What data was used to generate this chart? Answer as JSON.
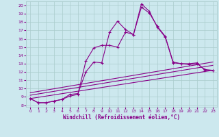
{
  "xlabel": "Windchill (Refroidissement éolien,°C)",
  "bg_color": "#cce8ee",
  "line_color": "#880088",
  "xlim": [
    -0.5,
    23.5
  ],
  "ylim": [
    7.8,
    20.5
  ],
  "xticks": [
    0,
    1,
    2,
    3,
    4,
    5,
    6,
    7,
    8,
    9,
    10,
    11,
    12,
    13,
    14,
    15,
    16,
    17,
    18,
    19,
    20,
    21,
    22,
    23
  ],
  "yticks": [
    8,
    9,
    10,
    11,
    12,
    13,
    14,
    15,
    16,
    17,
    18,
    19,
    20
  ],
  "curve1_x": [
    0,
    1,
    2,
    3,
    4,
    5,
    6,
    7,
    8,
    9,
    10,
    11,
    12,
    13,
    14,
    15,
    16,
    17,
    18,
    19,
    20,
    21,
    22,
    23
  ],
  "curve1_y": [
    8.8,
    8.3,
    8.3,
    8.5,
    8.7,
    9.3,
    9.4,
    12.0,
    13.2,
    13.1,
    16.8,
    18.1,
    17.1,
    16.5,
    20.2,
    19.3,
    17.4,
    16.2,
    13.1,
    13.0,
    13.0,
    13.1,
    12.2,
    12.2
  ],
  "curve2_x": [
    0,
    1,
    2,
    3,
    4,
    5,
    6,
    7,
    8,
    9,
    10,
    11,
    12,
    13,
    14,
    15,
    16,
    17,
    18,
    19,
    20,
    21,
    22,
    23
  ],
  "curve2_y": [
    8.8,
    8.3,
    8.3,
    8.5,
    8.7,
    9.1,
    9.3,
    13.3,
    14.9,
    15.2,
    15.2,
    15.0,
    16.8,
    16.5,
    19.8,
    19.1,
    17.5,
    16.3,
    13.2,
    13.0,
    12.9,
    13.0,
    12.3,
    12.2
  ],
  "line1_x": [
    0,
    23
  ],
  "line1_y": [
    8.8,
    12.2
  ],
  "line2_x": [
    0,
    23
  ],
  "line2_y": [
    9.2,
    12.8
  ],
  "line3_x": [
    0,
    23
  ],
  "line3_y": [
    9.5,
    13.2
  ]
}
